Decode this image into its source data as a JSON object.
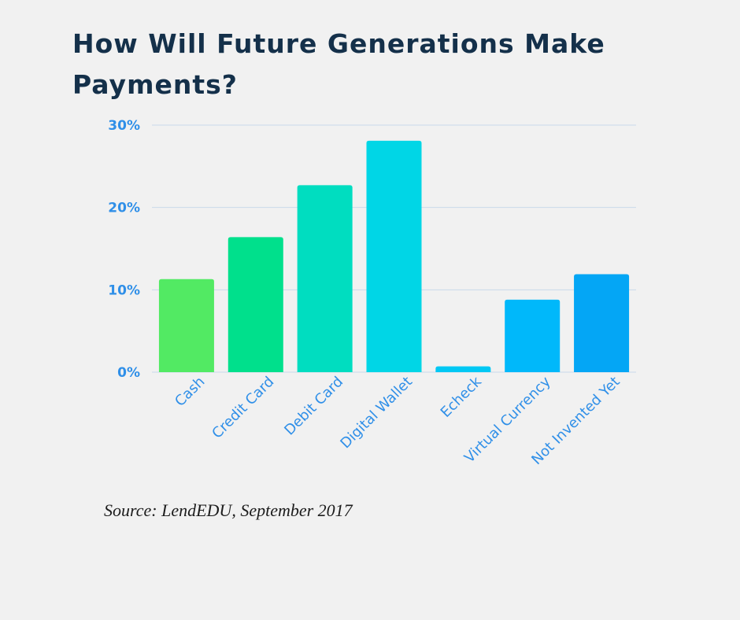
{
  "title": "How Will Future Generations Make Payments?",
  "source": "Source: LendEDU, September 2017",
  "colors": {
    "axis_text": "#2f8fe8",
    "gridline": "#c9d9ea",
    "title": "#14304a"
  },
  "chart_data": {
    "type": "bar",
    "title": "How Will Future Generations Make Payments?",
    "xlabel": "",
    "ylabel": "",
    "ylim": [
      0,
      30
    ],
    "y_ticks": [
      "0%",
      "10%",
      "20%",
      "30%"
    ],
    "y_tick_values": [
      0,
      10,
      20,
      30
    ],
    "grid": true,
    "categories": [
      "Cash",
      "Credit Card",
      "Debit Card",
      "Digital Wallet",
      "Echeck",
      "Virtual Currency",
      "Not Invented Yet"
    ],
    "values": [
      11.3,
      16.4,
      22.7,
      28.1,
      0.7,
      8.8,
      11.9
    ],
    "bar_colors": [
      "#52ea63",
      "#00e08c",
      "#00ddc0",
      "#00d6e6",
      "#00c8f4",
      "#00b8fa",
      "#04a6f5"
    ]
  }
}
